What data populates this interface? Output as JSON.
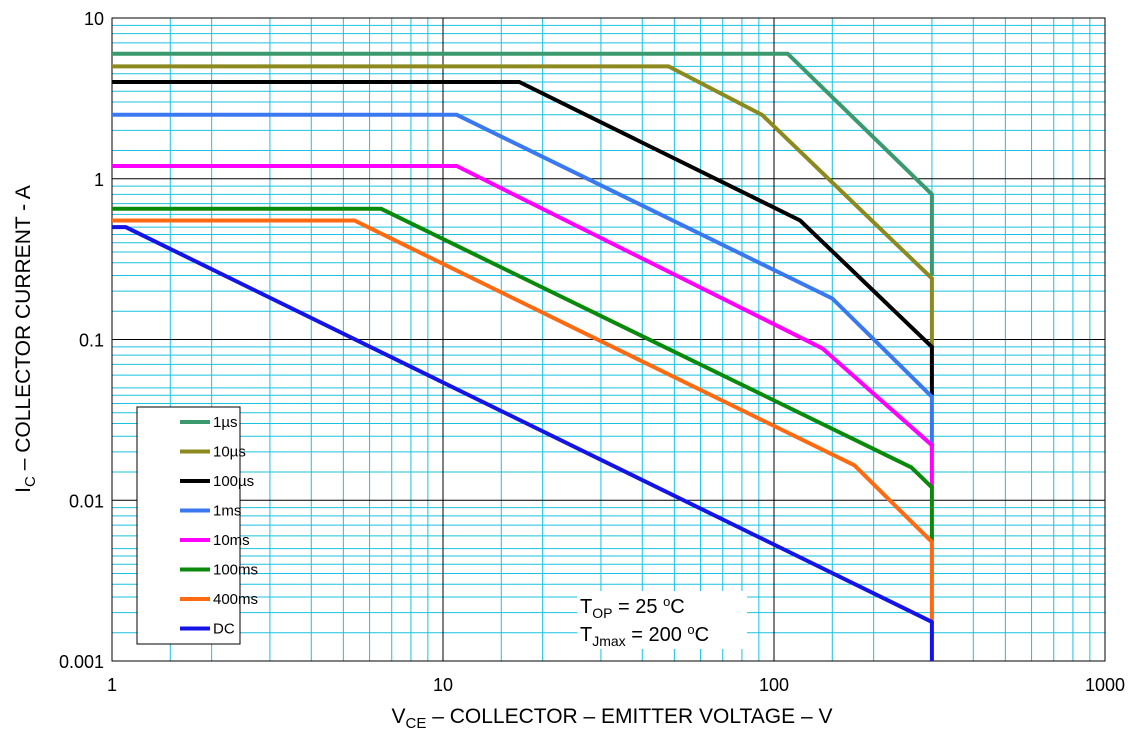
{
  "chart_data": {
    "type": "line",
    "x_scale": "log",
    "y_scale": "log",
    "xlim": [
      1,
      1000
    ],
    "ylim": [
      0.001,
      10
    ],
    "grid": true,
    "legend_position": "bottom-left",
    "x_ticks": [
      "1",
      "10",
      "100",
      "1000"
    ],
    "y_ticks": [
      "0.001",
      "0.01",
      "0.1",
      "1",
      "10"
    ],
    "xlabel": {
      "prefix": "V",
      "subscript": "CE",
      "rest": " – COLLECTOR – EMITTER VOLTAGE – V"
    },
    "ylabel": {
      "prefix": "I",
      "subscript": "C",
      "rest": " – COLLECTOR CURRENT - A"
    },
    "annotations": {
      "top_line": {
        "prefix": "T",
        "subscript": "OP",
        "rest": " = 25 ",
        "sup": "o",
        "unit": "C"
      },
      "tj_line": {
        "prefix": "T",
        "subscript": "Jmax",
        "rest": " = 200 ",
        "sup": "o",
        "unit": "C"
      }
    },
    "series": [
      {
        "name": "1µs",
        "color": "#3a9a6e",
        "points": [
          [
            1,
            6.0
          ],
          [
            110,
            6.0
          ],
          [
            300,
            0.8
          ],
          [
            300,
            0.25
          ]
        ]
      },
      {
        "name": "10µs",
        "color": "#8c8a1e",
        "points": [
          [
            1,
            5.0
          ],
          [
            48,
            5.0
          ],
          [
            92,
            2.5
          ],
          [
            300,
            0.24
          ],
          [
            300,
            0.09
          ]
        ]
      },
      {
        "name": "100µs",
        "color": "#000000",
        "points": [
          [
            1,
            4.0
          ],
          [
            17,
            4.0
          ],
          [
            120,
            0.55
          ],
          [
            300,
            0.09
          ],
          [
            300,
            0.045
          ]
        ]
      },
      {
        "name": "1ms",
        "color": "#3a78f0",
        "points": [
          [
            1,
            2.5
          ],
          [
            11,
            2.5
          ],
          [
            150,
            0.18
          ],
          [
            300,
            0.044
          ],
          [
            300,
            0.021
          ]
        ]
      },
      {
        "name": "10ms",
        "color": "#ff00ff",
        "points": [
          [
            1,
            1.2
          ],
          [
            11,
            1.2
          ],
          [
            140,
            0.088
          ],
          [
            300,
            0.022
          ],
          [
            300,
            0.012
          ]
        ]
      },
      {
        "name": "100ms",
        "color": "#0a8a0a",
        "points": [
          [
            1,
            0.65
          ],
          [
            6.5,
            0.65
          ],
          [
            260,
            0.016
          ],
          [
            300,
            0.012
          ],
          [
            300,
            0.0055
          ]
        ]
      },
      {
        "name": "400ms",
        "color": "#ff6a10",
        "points": [
          [
            1,
            0.55
          ],
          [
            5.4,
            0.55
          ],
          [
            175,
            0.0165
          ],
          [
            300,
            0.0055
          ],
          [
            300,
            0.0018
          ]
        ]
      },
      {
        "name": "DC",
        "color": "#1414e6",
        "points": [
          [
            1,
            0.5
          ],
          [
            1.1,
            0.5
          ],
          [
            300,
            0.00175
          ],
          [
            300,
            0.001
          ]
        ]
      }
    ]
  }
}
